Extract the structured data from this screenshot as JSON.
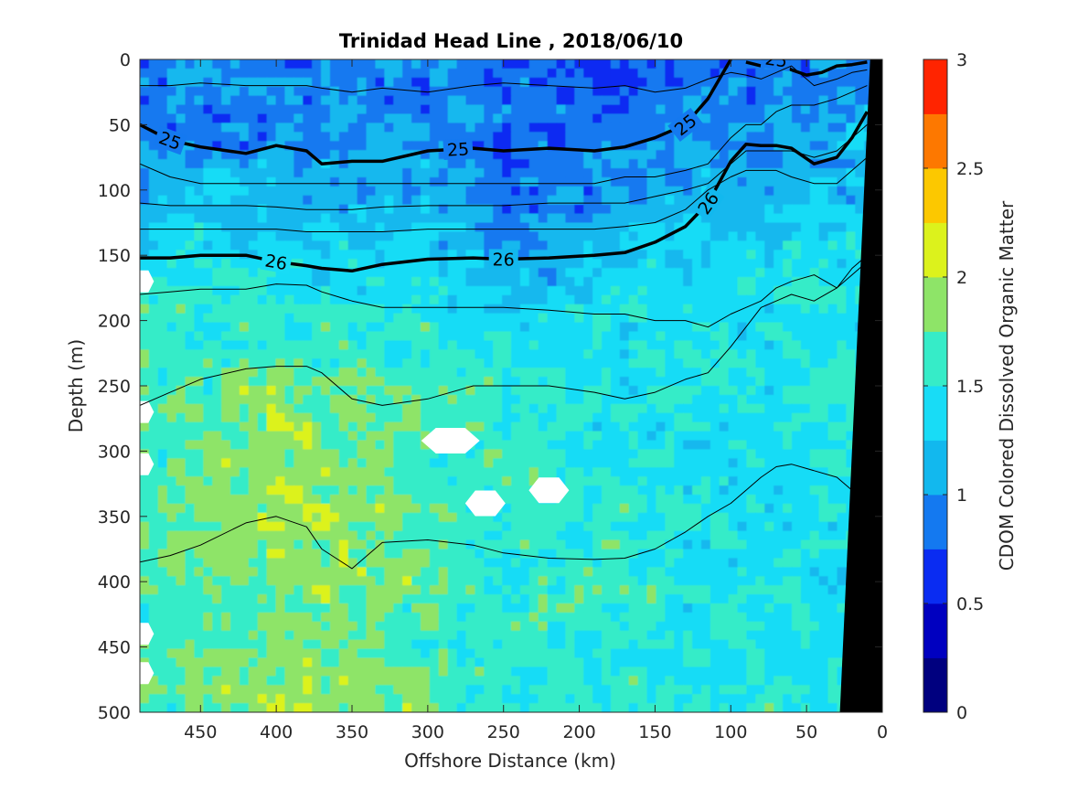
{
  "chart_data": {
    "type": "heatmap",
    "title": "Trinidad Head Line , 2018/06/10",
    "xlabel": "Offshore Distance (km)",
    "ylabel": "Depth (m)",
    "colorbar_label": "CDOM Colored Dissolved Organic Matter",
    "xlim": [
      490,
      0
    ],
    "ylim": [
      0,
      500
    ],
    "y_reversed": true,
    "x_reversed": true,
    "xticks": [
      450,
      400,
      350,
      300,
      250,
      200,
      150,
      100,
      50,
      0
    ],
    "yticks": [
      0,
      50,
      100,
      150,
      200,
      250,
      300,
      350,
      400,
      450,
      500
    ],
    "colorbar": {
      "range": [
        0,
        3
      ],
      "ticks": [
        0,
        0.5,
        1,
        1.5,
        2,
        2.5,
        3
      ],
      "levels": [
        0,
        0.25,
        0.5,
        0.75,
        1.0,
        1.25,
        1.5,
        1.75,
        2.0,
        2.25,
        2.5,
        2.75,
        3.0
      ],
      "colors": [
        "#00007f",
        "#0000c0",
        "#0a2cf2",
        "#1479f0",
        "#12b8ee",
        "#18dcf6",
        "#36ecc8",
        "#8ee468",
        "#dcf21c",
        "#fcc800",
        "#fd7800",
        "#ff2400",
        "#c80000"
      ]
    },
    "field_grid": {
      "x": [
        490,
        450,
        400,
        350,
        300,
        250,
        200,
        150,
        100,
        50,
        10
      ],
      "depth": [
        0,
        50,
        100,
        150,
        200,
        250,
        300,
        350,
        400,
        450,
        500
      ],
      "cdom": [
        [
          0.92,
          0.9,
          0.88,
          0.92,
          0.9,
          0.8,
          0.78,
          0.8,
          0.95,
          0.95,
          0.9
        ],
        [
          0.95,
          0.92,
          0.9,
          0.92,
          0.95,
          0.88,
          0.82,
          0.85,
          1.0,
          1.05,
          1.1
        ],
        [
          1.05,
          1.15,
          1.1,
          1.1,
          1.1,
          0.85,
          0.95,
          1.1,
          1.15,
          1.15,
          1.2
        ],
        [
          1.5,
          1.4,
          1.4,
          1.35,
          1.3,
          1.0,
          1.15,
          1.25,
          1.3,
          1.4,
          1.35
        ],
        [
          1.6,
          1.55,
          1.55,
          1.55,
          1.5,
          1.3,
          1.35,
          1.45,
          1.45,
          1.5,
          1.4
        ],
        [
          1.7,
          1.7,
          1.85,
          1.7,
          1.65,
          1.55,
          1.5,
          1.5,
          1.45,
          1.5,
          1.45
        ],
        [
          1.7,
          1.7,
          1.9,
          1.8,
          1.7,
          1.55,
          1.5,
          1.45,
          1.4,
          1.45,
          1.45
        ],
        [
          1.75,
          1.85,
          1.95,
          1.85,
          1.75,
          1.6,
          1.55,
          1.5,
          1.45,
          1.45,
          1.4
        ],
        [
          1.7,
          1.75,
          1.9,
          1.85,
          1.75,
          1.6,
          1.55,
          1.55,
          1.45,
          1.45,
          1.4
        ],
        [
          1.65,
          1.75,
          1.85,
          1.75,
          1.65,
          1.6,
          1.55,
          1.55,
          1.5,
          1.45,
          1.4
        ],
        [
          1.7,
          1.8,
          1.95,
          1.85,
          1.7,
          1.6,
          1.55,
          1.55,
          1.5,
          1.5,
          1.45
        ]
      ]
    },
    "density_contours": {
      "x": [
        490,
        470,
        450,
        420,
        400,
        380,
        370,
        350,
        330,
        300,
        270,
        250,
        220,
        190,
        170,
        150,
        130,
        115,
        100,
        90,
        80,
        70,
        60,
        45,
        30,
        20,
        10
      ],
      "lines": [
        {
          "name": "25",
          "bold": true,
          "label_x": [
            470,
            280,
            130,
            70
          ],
          "depth": [
            50,
            62,
            67,
            72,
            66,
            70,
            80,
            78,
            78,
            70,
            68,
            70,
            68,
            70,
            67,
            60,
            50,
            30,
            0,
            null,
            null,
            null,
            null,
            null,
            null,
            null,
            null
          ],
          "shallow_branch": {
            "x": [
              90,
              80,
              70,
              60,
              50,
              40,
              30,
              20,
              10
            ],
            "depth": [
              2,
              5,
              0,
              8,
              12,
              10,
              5,
              4,
              2
            ]
          }
        },
        {
          "name": "26",
          "bold": true,
          "label_x": [
            400,
            250,
            115
          ],
          "depth": [
            152,
            152,
            150,
            150,
            155,
            158,
            160,
            162,
            157,
            153,
            152,
            153,
            152,
            150,
            148,
            140,
            128,
            110,
            78,
            65,
            66,
            66,
            68,
            80,
            75,
            60,
            40
          ]
        },
        {
          "name": "",
          "bold": false,
          "depth": [
            20,
            20,
            18,
            20,
            20,
            20,
            22,
            25,
            22,
            25,
            20,
            18,
            20,
            22,
            20,
            25,
            22,
            15,
            10,
            12,
            15,
            10,
            5,
            20,
            15,
            10,
            8
          ]
        },
        {
          "name": "",
          "bold": false,
          "depth": [
            80,
            90,
            95,
            95,
            95,
            95,
            95,
            95,
            95,
            95,
            95,
            95,
            95,
            95,
            90,
            90,
            85,
            80,
            60,
            50,
            50,
            40,
            35,
            35,
            30,
            25,
            20
          ]
        },
        {
          "name": "",
          "bold": false,
          "depth": [
            110,
            112,
            112,
            112,
            113,
            115,
            115,
            115,
            113,
            112,
            112,
            112,
            110,
            110,
            110,
            105,
            100,
            95,
            80,
            70,
            70,
            70,
            70,
            75,
            70,
            60,
            50
          ]
        },
        {
          "name": "",
          "bold": false,
          "depth": [
            130,
            130,
            130,
            130,
            130,
            132,
            132,
            132,
            132,
            130,
            130,
            130,
            130,
            130,
            128,
            125,
            115,
            100,
            90,
            85,
            85,
            85,
            90,
            95,
            95,
            85,
            75
          ]
        },
        {
          "name": "",
          "bold": false,
          "depth": [
            180,
            178,
            176,
            176,
            172,
            173,
            178,
            185,
            190,
            190,
            190,
            190,
            192,
            195,
            195,
            200,
            200,
            205,
            195,
            190,
            185,
            175,
            170,
            165,
            175,
            165,
            155
          ]
        },
        {
          "name": "",
          "bold": false,
          "depth": [
            265,
            255,
            245,
            237,
            235,
            235,
            240,
            260,
            265,
            260,
            250,
            250,
            250,
            255,
            260,
            255,
            245,
            240,
            220,
            205,
            190,
            185,
            180,
            185,
            175,
            160,
            150
          ]
        },
        {
          "name": "",
          "bold": false,
          "depth": [
            385,
            380,
            372,
            355,
            350,
            358,
            375,
            390,
            370,
            368,
            372,
            378,
            382,
            383,
            382,
            375,
            362,
            350,
            340,
            330,
            320,
            312,
            310,
            315,
            320,
            330,
            335
          ]
        }
      ]
    },
    "missing_patches": [
      {
        "x": 285,
        "depth": 292
      },
      {
        "x": 262,
        "depth": 340
      },
      {
        "x": 220,
        "depth": 330
      },
      {
        "x": 488,
        "depth": 170
      },
      {
        "x": 488,
        "depth": 270
      },
      {
        "x": 488,
        "depth": 310
      },
      {
        "x": 488,
        "depth": 440
      },
      {
        "x": 488,
        "depth": 470
      }
    ],
    "bathymetry": {
      "x": [
        8,
        0,
        0,
        28
      ],
      "depth": [
        0,
        0,
        500,
        500
      ]
    }
  }
}
